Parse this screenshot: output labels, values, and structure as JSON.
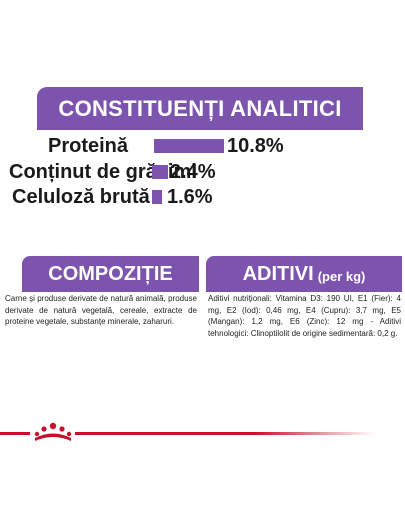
{
  "analytical": {
    "title": "CONSTITUENȚI ANALITICI",
    "rows": [
      {
        "label": "Proteină",
        "value": "10.8%",
        "amount": 10.8
      },
      {
        "label": "Conținut de grăsimi",
        "value": "2.4%",
        "amount": 2.4
      },
      {
        "label": "Celuloză brută",
        "value": "1.6%",
        "amount": 1.6
      }
    ]
  },
  "composition": {
    "title": "COMPOZIȚIE",
    "text": "Carne și produse derivate de natură animală, produse derivate de natură vegetală, cereale, extracte de proteine vegetale, substanțe minerale, zaharuri."
  },
  "additives": {
    "title": "ADITIVI",
    "unit": "(per kg)",
    "text": "Aditivi nutriționali: Vitamina D3: 190 UI, E1 (Fier): 4 mg, E2 (Iod): 0,46 mg, E4 (Cupru): 3,7 mg, E5 (Mangan): 1,2 mg, E6 (Zinc): 12 mg - Aditivi tehnologici: Clinoptilolit de origine sedimentară: 0,2 g."
  },
  "colors": {
    "accent": "#7c54ad",
    "brand_red": "#c8102e"
  },
  "footer": {
    "logo_icon": "royal-canin-crown-icon"
  }
}
